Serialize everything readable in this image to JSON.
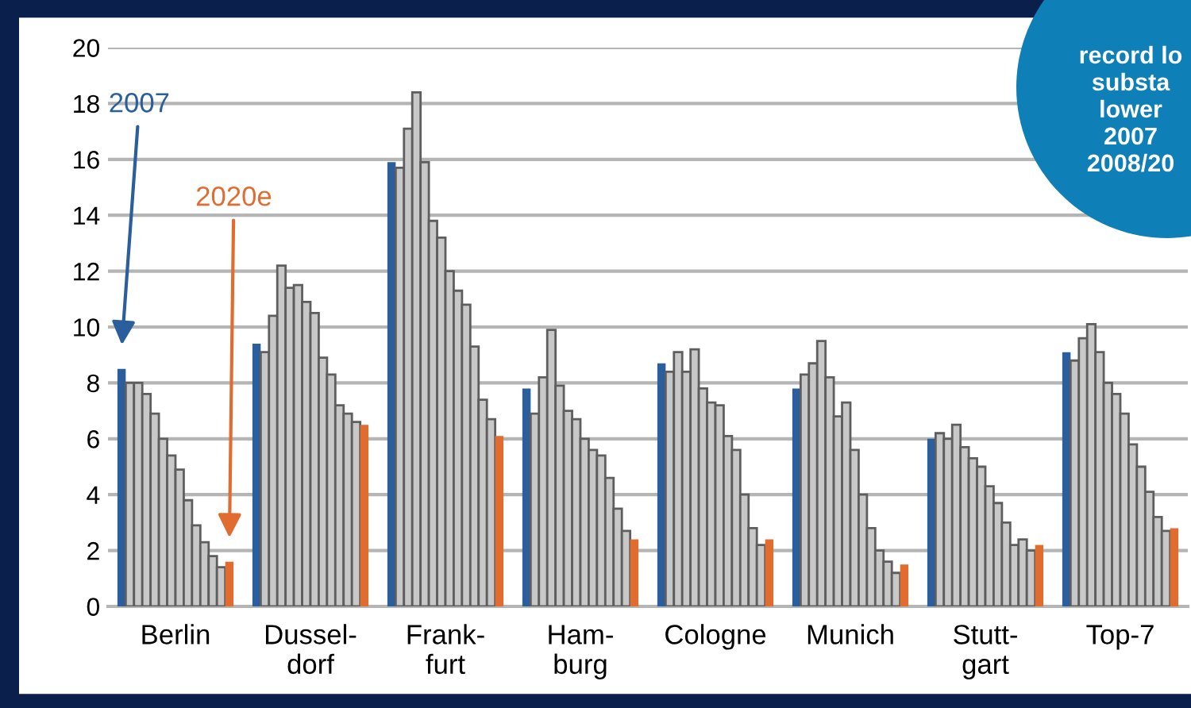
{
  "chart_data": {
    "type": "bar",
    "categories": [
      "Berlin",
      "Dussel-\ndorf",
      "Frank-\nfurt",
      "Ham-\nburg",
      "Cologne",
      "Munich",
      "Stutt-\ngart",
      "Top-7"
    ],
    "series": [
      {
        "color": "#2a5e9c",
        "values": [
          8.5,
          9.4,
          15.9,
          7.8,
          8.7,
          7.8,
          6.0,
          9.1
        ]
      },
      {
        "color": "#c8c8c8",
        "values": [
          8.0,
          9.1,
          15.7,
          6.9,
          8.4,
          8.3,
          6.2,
          8.8
        ]
      },
      {
        "color": "#c8c8c8",
        "values": [
          8.0,
          10.4,
          17.1,
          8.2,
          9.1,
          8.7,
          6.0,
          9.6
        ]
      },
      {
        "color": "#c8c8c8",
        "values": [
          7.6,
          12.2,
          18.4,
          9.9,
          8.4,
          9.5,
          6.5,
          10.1
        ]
      },
      {
        "color": "#c8c8c8",
        "values": [
          6.9,
          11.4,
          15.9,
          7.9,
          9.2,
          8.2,
          5.7,
          9.1
        ]
      },
      {
        "color": "#c8c8c8",
        "values": [
          6.0,
          11.5,
          13.8,
          7.0,
          7.8,
          6.8,
          5.3,
          8.0
        ]
      },
      {
        "color": "#c8c8c8",
        "values": [
          5.4,
          10.9,
          13.2,
          6.7,
          7.3,
          7.3,
          5.0,
          7.6
        ]
      },
      {
        "color": "#c8c8c8",
        "values": [
          4.9,
          10.5,
          12.0,
          6.0,
          7.2,
          5.6,
          4.3,
          6.9
        ]
      },
      {
        "color": "#c8c8c8",
        "values": [
          3.8,
          8.9,
          11.3,
          5.6,
          6.1,
          4.0,
          3.7,
          5.8
        ]
      },
      {
        "color": "#c8c8c8",
        "values": [
          2.9,
          8.3,
          10.8,
          5.4,
          5.6,
          2.8,
          3.0,
          5.0
        ]
      },
      {
        "color": "#c8c8c8",
        "values": [
          2.3,
          7.2,
          9.3,
          4.6,
          4.0,
          2.0,
          2.2,
          4.1
        ]
      },
      {
        "color": "#c8c8c8",
        "values": [
          1.8,
          6.9,
          7.4,
          3.5,
          2.8,
          1.6,
          2.4,
          3.2
        ]
      },
      {
        "color": "#c8c8c8",
        "values": [
          1.4,
          6.6,
          6.7,
          2.7,
          2.2,
          1.2,
          2.0,
          2.7
        ]
      },
      {
        "color": "#e06c30",
        "values": [
          1.6,
          6.5,
          6.1,
          2.4,
          2.4,
          1.5,
          2.2,
          2.8
        ]
      }
    ],
    "ylim": [
      0,
      20
    ],
    "yticks": [
      0,
      2,
      4,
      6,
      8,
      10,
      12,
      14,
      16,
      18,
      20
    ],
    "grid": "y",
    "annotations": [
      "2007",
      "2020e",
      "record lo\nsubsta\nlower\n2007\n2008/20"
    ]
  }
}
